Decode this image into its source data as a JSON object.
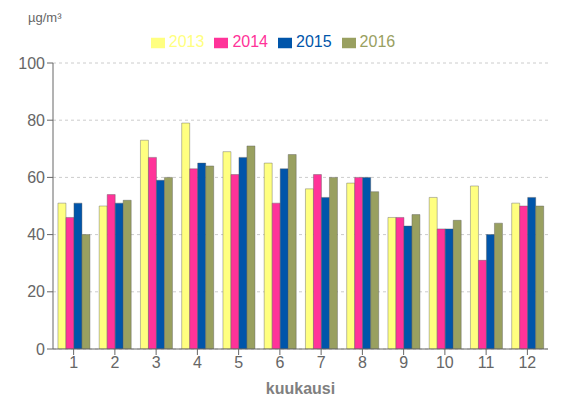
{
  "chart_data": {
    "type": "bar",
    "ylabel": "µg/m³",
    "xlabel": "kuukausi",
    "categories": [
      "1",
      "2",
      "3",
      "4",
      "5",
      "6",
      "7",
      "8",
      "9",
      "10",
      "11",
      "12"
    ],
    "series": [
      {
        "name": "2013",
        "color": "#FFFF80",
        "values": [
          51,
          50,
          73,
          79,
          69,
          65,
          56,
          58,
          46,
          53,
          57,
          51
        ]
      },
      {
        "name": "2014",
        "color": "#FF3399",
        "values": [
          46,
          54,
          67,
          63,
          61,
          51,
          61,
          60,
          46,
          42,
          31,
          50
        ]
      },
      {
        "name": "2015",
        "color": "#0055AA",
        "values": [
          51,
          51,
          59,
          65,
          67,
          63,
          53,
          60,
          43,
          42,
          40,
          53
        ]
      },
      {
        "name": "2016",
        "color": "#99A060",
        "values": [
          40,
          52,
          60,
          64,
          71,
          68,
          60,
          55,
          47,
          45,
          44,
          50
        ]
      }
    ],
    "ylim": [
      0,
      100
    ],
    "yticks": [
      0,
      20,
      40,
      60,
      80,
      100
    ],
    "grid": true,
    "legend": "top"
  }
}
